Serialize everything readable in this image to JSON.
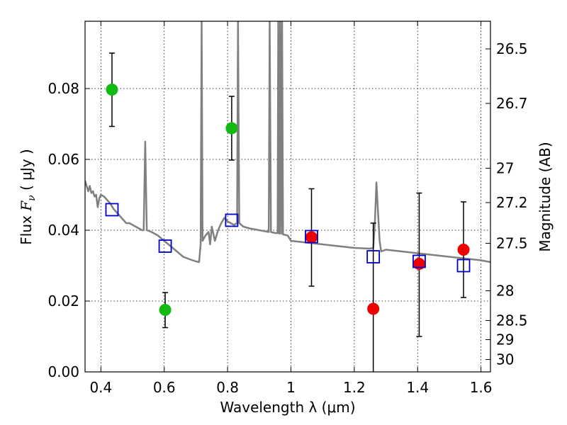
{
  "chart_data": {
    "type": "scatter",
    "xlabel": "Wavelength  λ (μm)",
    "ylabel": "Flux  F_ν  ( μJy )",
    "ylabel_parts": {
      "pre": "Flux  ",
      "f": "F",
      "sub": "ν",
      "post": "  ( μJy )"
    },
    "y2label": "Magnitude (AB)",
    "xlim": [
      0.35,
      1.63
    ],
    "ylim": [
      0.0,
      0.099
    ],
    "xticks": [
      0.4,
      0.6,
      0.8,
      1.0,
      1.2,
      1.4,
      1.6
    ],
    "xtick_labels": [
      "0.4",
      "0.6",
      "0.8",
      "1",
      "1.2",
      "1.4",
      "1.6"
    ],
    "yticks": [
      0.0,
      0.02,
      0.04,
      0.06,
      0.08
    ],
    "ytick_labels": [
      "0.00",
      "0.02",
      "0.04",
      "0.06",
      "0.08"
    ],
    "y2ticks": [
      {
        "label": "26.5",
        "flux": 0.0912
      },
      {
        "label": "26.7",
        "flux": 0.0758
      },
      {
        "label": "27",
        "flux": 0.0575
      },
      {
        "label": "27.2",
        "flux": 0.0478
      },
      {
        "label": "27.5",
        "flux": 0.0363
      },
      {
        "label": "28",
        "flux": 0.0229
      },
      {
        "label": "28.5",
        "flux": 0.0145
      },
      {
        "label": "29",
        "flux": 0.0091
      },
      {
        "label": "30",
        "flux": 0.0035
      }
    ],
    "grid": true,
    "colors": {
      "green": "#11bb11",
      "red": "#ee0000",
      "blue": "#0000cc",
      "spectrum": "#808080",
      "errorbar": "#000000"
    },
    "series": [
      {
        "marker": "circle",
        "color": "#11bb11",
        "points": [
          {
            "x": 0.435,
            "y": 0.0797,
            "ylo": 0.0693,
            "yhi": 0.09
          },
          {
            "x": 0.603,
            "y": 0.0175,
            "ylo": 0.0125,
            "yhi": 0.0224
          },
          {
            "x": 0.813,
            "y": 0.0688,
            "ylo": 0.0598,
            "yhi": 0.0778
          }
        ]
      },
      {
        "marker": "circle",
        "color": "#ee0000",
        "points": [
          {
            "x": 1.065,
            "y": 0.038,
            "ylo": 0.0242,
            "yhi": 0.0517
          },
          {
            "x": 1.26,
            "y": 0.0178,
            "ylo": 0.0,
            "yhi": 0.042
          },
          {
            "x": 1.405,
            "y": 0.0305,
            "ylo": 0.01,
            "yhi": 0.0505
          },
          {
            "x": 1.545,
            "y": 0.0345,
            "ylo": 0.021,
            "yhi": 0.048
          }
        ]
      },
      {
        "marker": "square",
        "color": "#0000cc",
        "points": [
          {
            "x": 0.435,
            "y": 0.0458
          },
          {
            "x": 0.603,
            "y": 0.0355
          },
          {
            "x": 0.813,
            "y": 0.0428
          },
          {
            "x": 1.065,
            "y": 0.0382
          },
          {
            "x": 1.26,
            "y": 0.0325
          },
          {
            "x": 1.405,
            "y": 0.0312
          },
          {
            "x": 1.545,
            "y": 0.03
          }
        ]
      }
    ],
    "spectrum": {
      "color": "#808080",
      "points": [
        [
          0.35,
          0.054
        ],
        [
          0.355,
          0.0525
        ],
        [
          0.36,
          0.051
        ],
        [
          0.365,
          0.0525
        ],
        [
          0.37,
          0.0505
        ],
        [
          0.375,
          0.051
        ],
        [
          0.38,
          0.0495
        ],
        [
          0.385,
          0.05
        ],
        [
          0.39,
          0.0465
        ],
        [
          0.395,
          0.049
        ],
        [
          0.4,
          0.05
        ],
        [
          0.41,
          0.0495
        ],
        [
          0.42,
          0.0485
        ],
        [
          0.43,
          0.0475
        ],
        [
          0.44,
          0.046
        ],
        [
          0.45,
          0.045
        ],
        [
          0.46,
          0.044
        ],
        [
          0.47,
          0.043
        ],
        [
          0.48,
          0.042
        ],
        [
          0.49,
          0.042
        ],
        [
          0.5,
          0.0415
        ],
        [
          0.51,
          0.041
        ],
        [
          0.52,
          0.0405
        ],
        [
          0.53,
          0.04
        ],
        [
          0.535,
          0.04
        ],
        [
          0.54,
          0.065
        ],
        [
          0.545,
          0.04
        ],
        [
          0.56,
          0.0395
        ],
        [
          0.58,
          0.0385
        ],
        [
          0.6,
          0.037
        ],
        [
          0.62,
          0.0355
        ],
        [
          0.64,
          0.034
        ],
        [
          0.66,
          0.0325
        ],
        [
          0.68,
          0.0318
        ],
        [
          0.7,
          0.0312
        ],
        [
          0.71,
          0.031
        ],
        [
          0.715,
          0.036
        ],
        [
          0.718,
          0.099
        ],
        [
          0.721,
          0.037
        ],
        [
          0.73,
          0.0385
        ],
        [
          0.74,
          0.0395
        ],
        [
          0.745,
          0.036
        ],
        [
          0.75,
          0.041
        ],
        [
          0.76,
          0.037
        ],
        [
          0.77,
          0.04
        ],
        [
          0.78,
          0.042
        ],
        [
          0.79,
          0.0435
        ],
        [
          0.8,
          0.0425
        ],
        [
          0.81,
          0.042
        ],
        [
          0.82,
          0.0415
        ],
        [
          0.83,
          0.042
        ],
        [
          0.833,
          0.099
        ],
        [
          0.837,
          0.042
        ],
        [
          0.85,
          0.041
        ],
        [
          0.87,
          0.0405
        ],
        [
          0.9,
          0.04
        ],
        [
          0.93,
          0.0395
        ],
        [
          0.933,
          0.099
        ],
        [
          0.937,
          0.0395
        ],
        [
          0.95,
          0.0392
        ],
        [
          0.958,
          0.0392
        ],
        [
          0.96,
          0.099
        ],
        [
          0.963,
          0.039
        ],
        [
          0.966,
          0.099
        ],
        [
          0.969,
          0.039
        ],
        [
          0.972,
          0.099
        ],
        [
          0.975,
          0.0388
        ],
        [
          0.99,
          0.0385
        ],
        [
          1.0,
          0.037
        ],
        [
          1.05,
          0.0365
        ],
        [
          1.1,
          0.036
        ],
        [
          1.15,
          0.0355
        ],
        [
          1.2,
          0.035
        ],
        [
          1.25,
          0.0348
        ],
        [
          1.26,
          0.035
        ],
        [
          1.265,
          0.042
        ],
        [
          1.27,
          0.0535
        ],
        [
          1.275,
          0.045
        ],
        [
          1.28,
          0.037
        ],
        [
          1.285,
          0.034
        ],
        [
          1.3,
          0.0345
        ],
        [
          1.35,
          0.034
        ],
        [
          1.4,
          0.0335
        ],
        [
          1.45,
          0.033
        ],
        [
          1.5,
          0.0325
        ],
        [
          1.55,
          0.032
        ],
        [
          1.6,
          0.0315
        ],
        [
          1.63,
          0.031
        ]
      ]
    }
  }
}
